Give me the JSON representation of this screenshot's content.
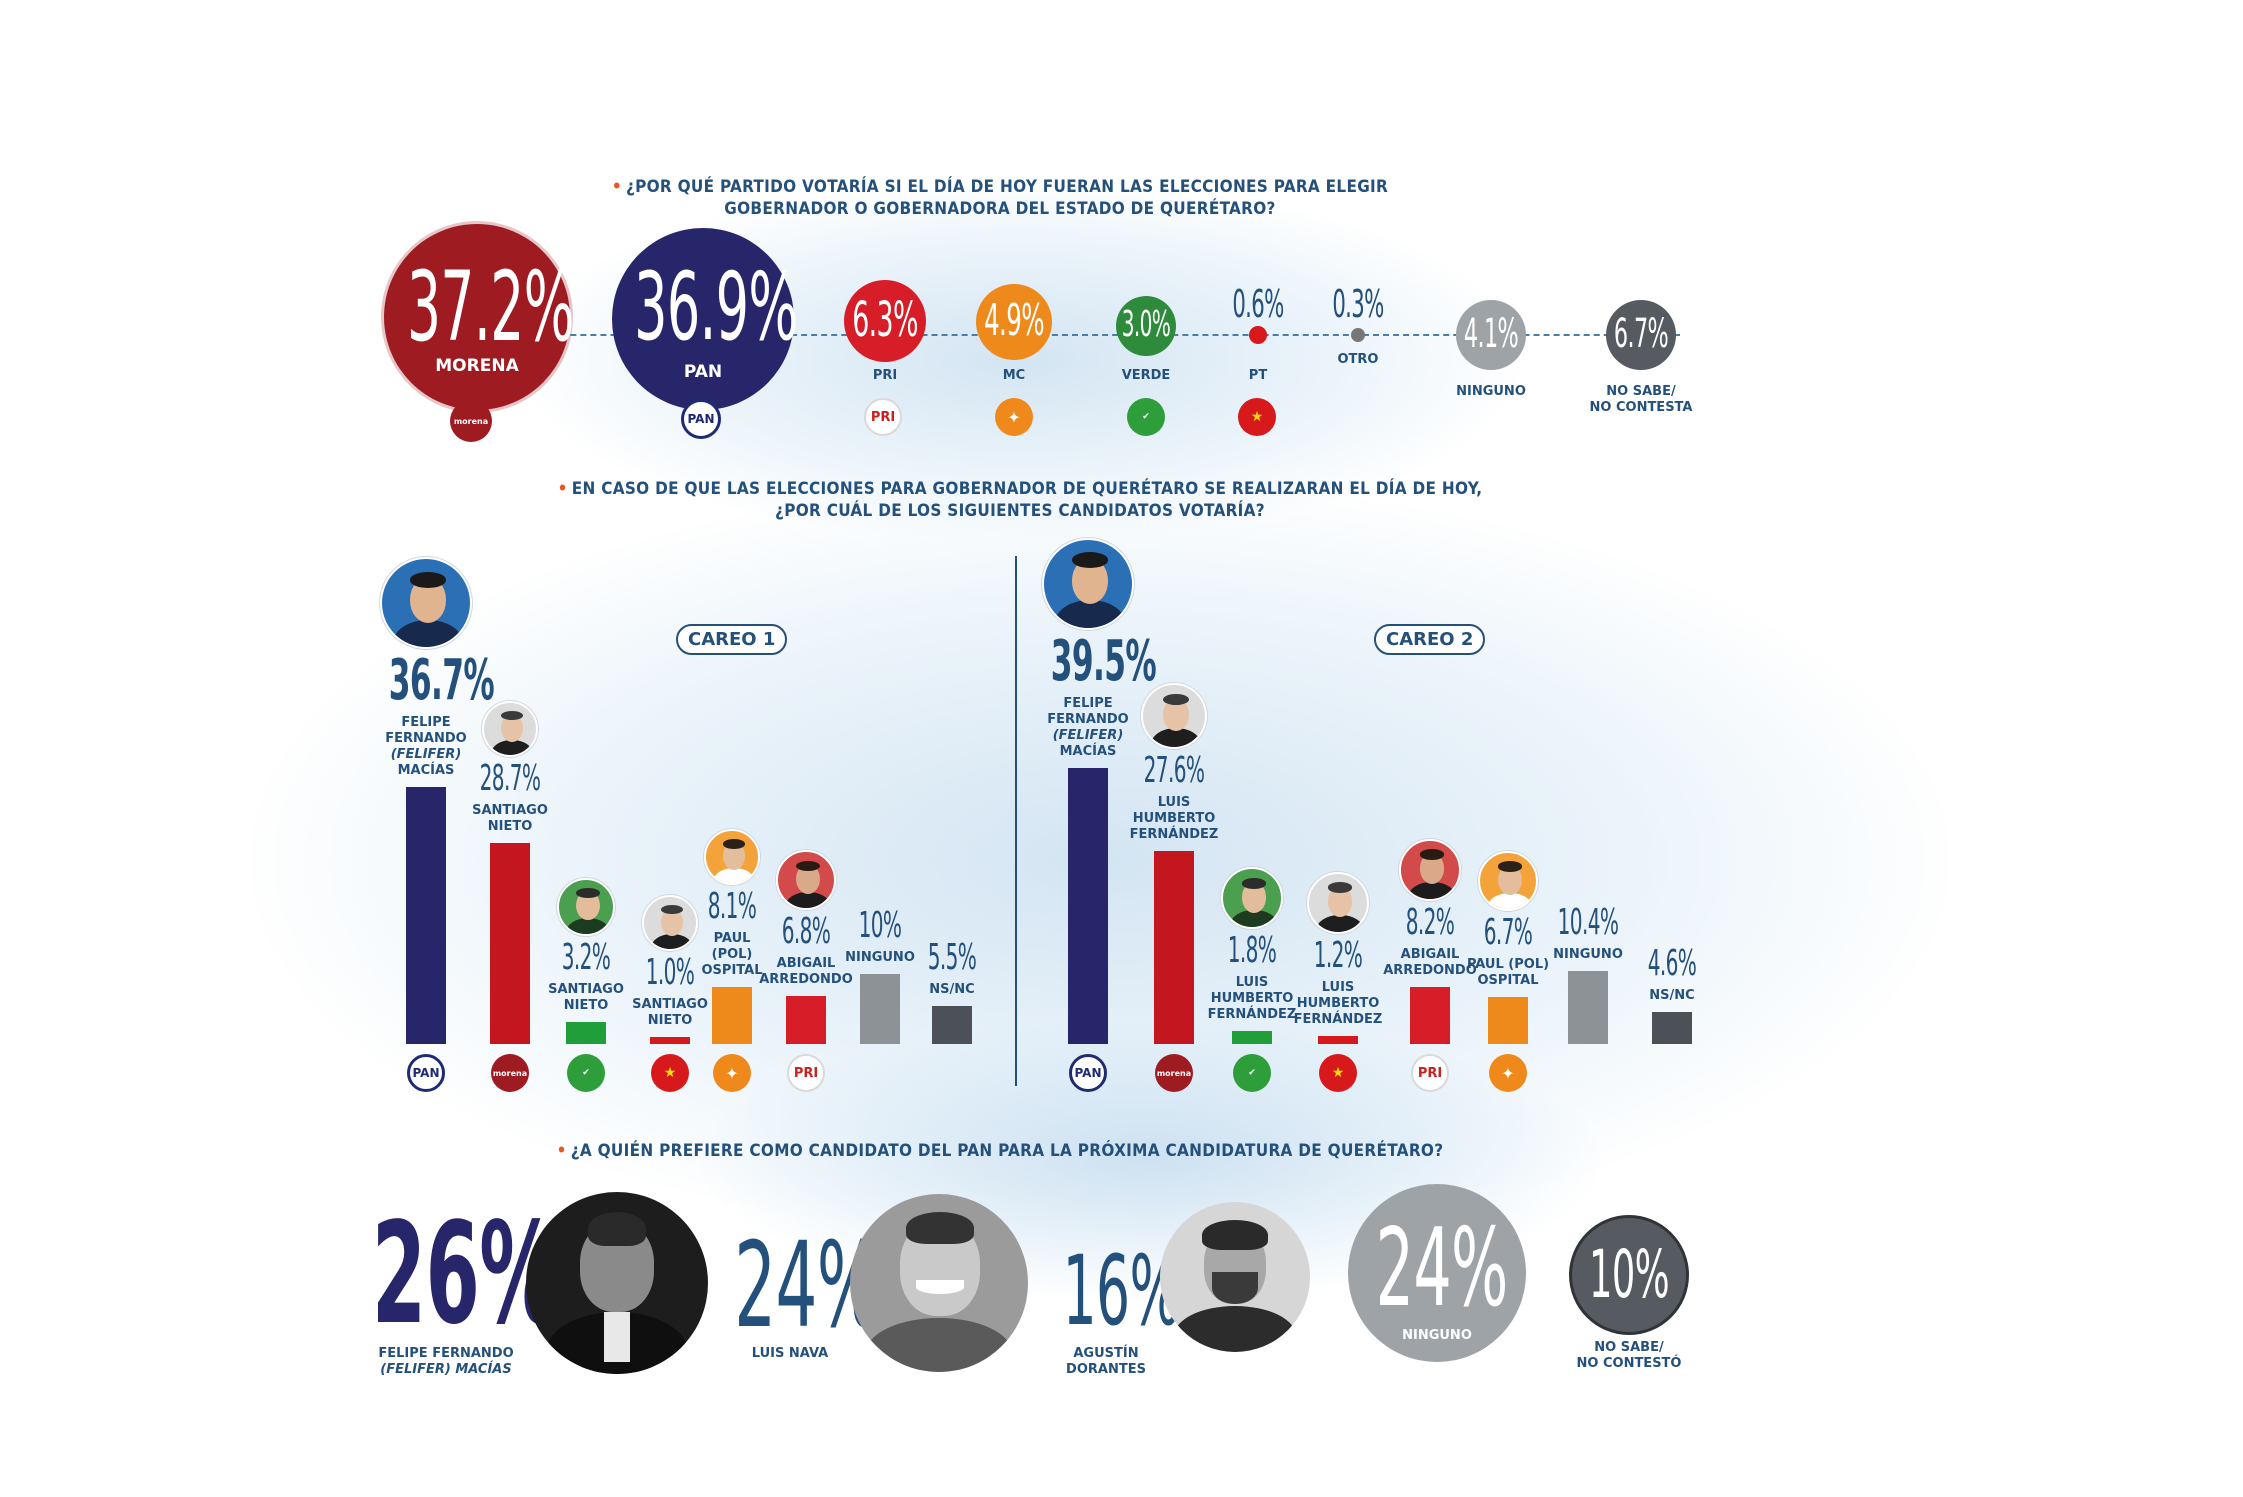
{
  "q1": {
    "question_line1": "¿POR QUÉ PARTIDO VOTARÍA SI EL DÍA DE HOY FUERAN LAS ELECCIONES PARA ELEGIR",
    "question_line2": "GOBERNADOR O GOBERNADORA DEL ESTADO DE QUERÉTARO?",
    "items": [
      {
        "pct": "37.2%",
        "label": "MORENA",
        "logo": "morena"
      },
      {
        "pct": "36.9%",
        "label": "PAN",
        "logo": "PAN"
      },
      {
        "pct": "6.3%",
        "label": "PRI",
        "logo": "PRI"
      },
      {
        "pct": "4.9%",
        "label": "MC",
        "logo": "MC"
      },
      {
        "pct": "3.0%",
        "label": "VERDE",
        "logo": "VERDE"
      },
      {
        "pct": "0.6%",
        "label": "PT",
        "logo": "PT"
      },
      {
        "pct": "0.3%",
        "label": "OTRO"
      },
      {
        "pct": "4.1%",
        "label": "NINGUNO"
      },
      {
        "pct": "6.7%",
        "label_line1": "NO SABE/",
        "label_line2": "NO CONTESTA"
      }
    ]
  },
  "q2": {
    "question_line1": "EN CASO DE QUE LAS ELECCIONES PARA GOBERNADOR DE QUERÉTARO SE REALIZARAN EL DÍA DE HOY,",
    "question_line2": "¿POR CUÁL DE LOS SIGUIENTES CANDIDATOS VOTARÍA?",
    "careo1": {
      "title": "CAREO 1",
      "bars": [
        {
          "pct": "36.7%",
          "name_lines": [
            "FELIPE",
            "FERNANDO",
            "(FELIFER)",
            "MACÍAS"
          ],
          "logo": "PAN"
        },
        {
          "pct": "28.7%",
          "name_lines": [
            "SANTIAGO",
            "NIETO"
          ],
          "logo": "morena"
        },
        {
          "pct": "3.2%",
          "name_lines": [
            "SANTIAGO",
            "NIETO"
          ],
          "logo": "VERDE"
        },
        {
          "pct": "1.0%",
          "name_lines": [
            "SANTIAGO",
            "NIETO"
          ],
          "logo": "PT"
        },
        {
          "pct": "8.1%",
          "name_lines": [
            "PAUL",
            "(POL)",
            "OSPITAL"
          ],
          "logo": "MC"
        },
        {
          "pct": "6.8%",
          "name_lines": [
            "ABIGAIL",
            "ARREDONDO"
          ],
          "logo": "PRI"
        },
        {
          "pct": "10%",
          "name_lines": [
            "NINGUNO"
          ]
        },
        {
          "pct": "5.5%",
          "name_lines": [
            "NS/NC"
          ]
        }
      ]
    },
    "careo2": {
      "title": "CAREO 2",
      "bars": [
        {
          "pct": "39.5%",
          "name_lines": [
            "FELIPE",
            "FERNANDO",
            "(FELIFER)",
            "MACÍAS"
          ],
          "logo": "PAN"
        },
        {
          "pct": "27.6%",
          "name_lines": [
            "LUIS",
            "HUMBERTO",
            "FERNÁNDEZ"
          ],
          "logo": "morena"
        },
        {
          "pct": "1.8%",
          "name_lines": [
            "LUIS",
            "HUMBERTO",
            "FERNÁNDEZ"
          ],
          "logo": "VERDE"
        },
        {
          "pct": "1.2%",
          "name_lines": [
            "LUIS",
            "HUMBERTO",
            "FERNÁNDEZ"
          ],
          "logo": "PT"
        },
        {
          "pct": "8.2%",
          "name_lines": [
            "ABIGAIL",
            "ARREDONDO"
          ],
          "logo": "PRI"
        },
        {
          "pct": "6.7%",
          "name_lines": [
            "PAUL (POL)",
            "OSPITAL"
          ],
          "logo": "MC"
        },
        {
          "pct": "10.4%",
          "name_lines": [
            "NINGUNO"
          ]
        },
        {
          "pct": "4.6%",
          "name_lines": [
            "NS/NC"
          ]
        }
      ]
    }
  },
  "q3": {
    "question": "¿A QUIÉN PREFIERE COMO CANDIDATO DEL PAN PARA LA PRÓXIMA CANDIDATURA DE QUERÉTARO?",
    "items": [
      {
        "pct": "26%",
        "name_line1": "FELIPE FERNANDO",
        "name_line2": "(FELIFER) MACÍAS"
      },
      {
        "pct": "24%",
        "name_line1": "LUIS NAVA",
        "name_line2": ""
      },
      {
        "pct": "16%",
        "name_line1": "AGUSTÍN",
        "name_line2": "DORANTES"
      },
      {
        "pct": "24%",
        "name_line1": "NINGUNO"
      },
      {
        "pct": "10%",
        "name_line1": "NO SABE/",
        "name_line2": "NO CONTESTÓ"
      }
    ]
  },
  "colors": {
    "morena": "#9e1b22",
    "pan": "#27266b",
    "pri": "#d71e28",
    "mc": "#ee8a1c",
    "verde": "#2e8b3b",
    "pt": "#d7191c",
    "otro": "#888888",
    "ninguno": "#9ea3a8",
    "nsnc": "#555b61",
    "text": "#24507c"
  },
  "chart_data": [
    {
      "type": "bar",
      "title": "CAREO 1",
      "categories": [
        "FELIPE FERNANDO (FELIFER) MACÍAS",
        "SANTIAGO NIETO",
        "SANTIAGO NIETO",
        "SANTIAGO NIETO",
        "PAUL (POL) OSPITAL",
        "ABIGAIL ARREDONDO",
        "NINGUNO",
        "NS/NC"
      ],
      "values": [
        36.7,
        28.7,
        3.2,
        1.0,
        8.1,
        6.8,
        10,
        5.5
      ],
      "colors": [
        "#27266b",
        "#c3161f",
        "#1f9e3a",
        "#d7191c",
        "#ee8a1c",
        "#d71e28",
        "#8d9297",
        "#4c5157"
      ],
      "ylim": [
        0,
        40
      ]
    },
    {
      "type": "bar",
      "title": "CAREO 2",
      "categories": [
        "FELIPE FERNANDO (FELIFER) MACÍAS",
        "LUIS HUMBERTO FERNÁNDEZ",
        "LUIS HUMBERTO FERNÁNDEZ",
        "LUIS HUMBERTO FERNÁNDEZ",
        "ABIGAIL ARREDONDO",
        "PAUL (POL) OSPITAL",
        "NINGUNO",
        "NS/NC"
      ],
      "values": [
        39.5,
        27.6,
        1.8,
        1.2,
        8.2,
        6.7,
        10.4,
        4.6
      ],
      "colors": [
        "#27266b",
        "#c3161f",
        "#1f9e3a",
        "#d7191c",
        "#d71e28",
        "#ee8a1c",
        "#8d9297",
        "#4c5157"
      ],
      "ylim": [
        0,
        40
      ]
    }
  ]
}
